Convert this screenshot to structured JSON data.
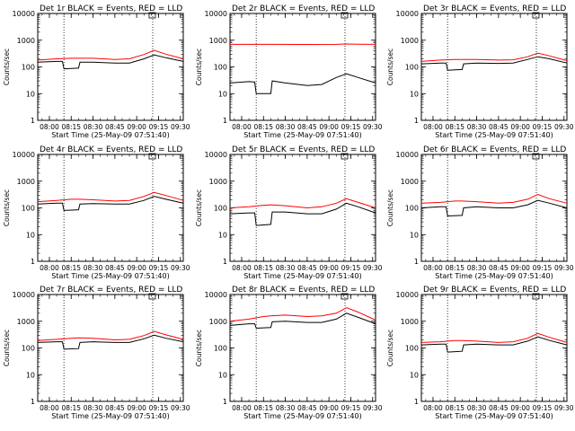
{
  "figure": {
    "ylabel": "Counts/sec",
    "xlabel": "Start Time (25-May-09 07:51:40)",
    "x_ticks": [
      "08:00",
      "08:15",
      "08:30",
      "08:45",
      "09:00",
      "09:15",
      "09:30"
    ],
    "y_ticks": [
      "1",
      "10",
      "100",
      "1000",
      "10000"
    ],
    "colors": {
      "events": "#000000",
      "lld": "#ff0000",
      "axes": "#000000"
    }
  },
  "chart_data": [
    {
      "type": "line",
      "title": "Det 1r BLACK = Events, RED = LLD",
      "xlabel": "Start Time (25-May-09 07:51:40)",
      "ylabel": "Counts/sec",
      "xlim": [
        "07:52",
        "09:32"
      ],
      "ylim": [
        1,
        10000
      ],
      "yscale": "log",
      "x_tick_labels": [
        "08:00",
        "08:15",
        "08:30",
        "08:45",
        "09:00",
        "09:15",
        "09:30"
      ],
      "y_tick_labels": [
        "1",
        "10",
        "100",
        "1000",
        "10000"
      ],
      "vlines": [
        "08:10",
        "09:11"
      ],
      "series": [
        {
          "name": "Events",
          "color": "#000000",
          "x": [
            "07:52",
            "08:05",
            "08:09",
            "08:10",
            "08:20",
            "08:21",
            "08:30",
            "08:45",
            "08:55",
            "09:05",
            "09:12",
            "09:20",
            "09:32"
          ],
          "y": [
            150,
            160,
            160,
            85,
            90,
            150,
            150,
            140,
            140,
            200,
            280,
            220,
            160
          ]
        },
        {
          "name": "LLD",
          "color": "#ff0000",
          "x": [
            "07:52",
            "08:05",
            "08:15",
            "08:20",
            "08:30",
            "08:45",
            "08:55",
            "09:05",
            "09:12",
            "09:20",
            "09:32"
          ],
          "y": [
            180,
            200,
            210,
            210,
            210,
            190,
            200,
            290,
            420,
            300,
            200
          ]
        }
      ]
    },
    {
      "type": "line",
      "title": "Det 2r BLACK = Events, RED = LLD",
      "xlabel": "Start Time (25-May-09 07:51:40)",
      "ylabel": "Counts/sec",
      "xlim": [
        "07:52",
        "09:32"
      ],
      "ylim": [
        1,
        10000
      ],
      "yscale": "log",
      "x_tick_labels": [
        "08:00",
        "08:15",
        "08:30",
        "08:45",
        "09:00",
        "09:15",
        "09:30"
      ],
      "y_tick_labels": [
        "1",
        "10",
        "100",
        "1000",
        "10000"
      ],
      "vlines": [
        "08:10",
        "09:11"
      ],
      "series": [
        {
          "name": "Events",
          "color": "#000000",
          "x": [
            "07:52",
            "08:05",
            "08:09",
            "08:10",
            "08:20",
            "08:21",
            "08:30",
            "08:45",
            "08:55",
            "09:05",
            "09:12",
            "09:20",
            "09:32"
          ],
          "y": [
            25,
            28,
            27,
            10,
            10,
            30,
            25,
            20,
            22,
            40,
            55,
            40,
            25
          ]
        },
        {
          "name": "LLD",
          "color": "#ff0000",
          "x": [
            "07:52",
            "08:20",
            "08:45",
            "09:05",
            "09:12",
            "09:20",
            "09:32"
          ],
          "y": [
            700,
            700,
            690,
            700,
            720,
            710,
            700
          ]
        }
      ]
    },
    {
      "type": "line",
      "title": "Det 3r BLACK = Events, RED = LLD",
      "xlabel": "Start Time (25-May-09 07:51:40)",
      "ylabel": "Counts/sec",
      "xlim": [
        "07:52",
        "09:32"
      ],
      "ylim": [
        1,
        10000
      ],
      "yscale": "log",
      "x_tick_labels": [
        "08:00",
        "08:15",
        "08:30",
        "08:45",
        "09:00",
        "09:15",
        "09:30"
      ],
      "y_tick_labels": [
        "1",
        "10",
        "100",
        "1000",
        "10000"
      ],
      "vlines": [
        "08:10",
        "09:11"
      ],
      "series": [
        {
          "name": "Events",
          "color": "#000000",
          "x": [
            "07:52",
            "08:05",
            "08:09",
            "08:10",
            "08:20",
            "08:21",
            "08:30",
            "08:45",
            "08:55",
            "09:05",
            "09:12",
            "09:20",
            "09:32"
          ],
          "y": [
            130,
            140,
            140,
            75,
            80,
            130,
            140,
            135,
            140,
            190,
            240,
            200,
            140
          ]
        },
        {
          "name": "LLD",
          "color": "#ff0000",
          "x": [
            "07:52",
            "08:05",
            "08:15",
            "08:20",
            "08:30",
            "08:45",
            "08:55",
            "09:05",
            "09:12",
            "09:20",
            "09:32"
          ],
          "y": [
            160,
            180,
            190,
            190,
            190,
            180,
            185,
            240,
            330,
            260,
            170
          ]
        }
      ]
    },
    {
      "type": "line",
      "title": "Det 4r BLACK = Events, RED = LLD",
      "xlabel": "Start Time (25-May-09 07:51:40)",
      "ylabel": "Counts/sec",
      "xlim": [
        "07:52",
        "09:32"
      ],
      "ylim": [
        1,
        10000
      ],
      "yscale": "log",
      "x_tick_labels": [
        "08:00",
        "08:15",
        "08:30",
        "08:45",
        "09:00",
        "09:15",
        "09:30"
      ],
      "y_tick_labels": [
        "1",
        "10",
        "100",
        "1000",
        "10000"
      ],
      "vlines": [
        "08:10",
        "09:11"
      ],
      "series": [
        {
          "name": "Events",
          "color": "#000000",
          "x": [
            "07:52",
            "08:05",
            "08:09",
            "08:10",
            "08:20",
            "08:21",
            "08:30",
            "08:45",
            "08:55",
            "09:05",
            "09:12",
            "09:20",
            "09:32"
          ],
          "y": [
            140,
            150,
            150,
            80,
            85,
            140,
            145,
            140,
            140,
            190,
            270,
            210,
            150
          ]
        },
        {
          "name": "LLD",
          "color": "#ff0000",
          "x": [
            "07:52",
            "08:05",
            "08:15",
            "08:20",
            "08:30",
            "08:45",
            "08:55",
            "09:05",
            "09:12",
            "09:20",
            "09:32"
          ],
          "y": [
            170,
            190,
            210,
            210,
            200,
            180,
            190,
            270,
            380,
            290,
            190
          ]
        }
      ]
    },
    {
      "type": "line",
      "title": "Det 5r BLACK = Events, RED = LLD",
      "xlabel": "Start Time (25-May-09 07:51:40)",
      "ylabel": "Counts/sec",
      "xlim": [
        "07:52",
        "09:32"
      ],
      "ylim": [
        1,
        10000
      ],
      "yscale": "log",
      "x_tick_labels": [
        "08:00",
        "08:15",
        "08:30",
        "08:45",
        "09:00",
        "09:15",
        "09:30"
      ],
      "y_tick_labels": [
        "1",
        "10",
        "100",
        "1000",
        "10000"
      ],
      "vlines": [
        "08:10",
        "09:11"
      ],
      "series": [
        {
          "name": "Events",
          "color": "#000000",
          "x": [
            "07:52",
            "08:05",
            "08:09",
            "08:10",
            "08:20",
            "08:21",
            "08:30",
            "08:45",
            "08:55",
            "09:05",
            "09:12",
            "09:20",
            "09:32"
          ],
          "y": [
            60,
            65,
            65,
            22,
            24,
            70,
            70,
            60,
            60,
            90,
            150,
            110,
            65
          ]
        },
        {
          "name": "LLD",
          "color": "#ff0000",
          "x": [
            "07:52",
            "08:05",
            "08:15",
            "08:20",
            "08:30",
            "08:45",
            "08:55",
            "09:05",
            "09:12",
            "09:20",
            "09:32"
          ],
          "y": [
            100,
            110,
            125,
            130,
            120,
            100,
            110,
            150,
            220,
            160,
            100
          ]
        }
      ]
    },
    {
      "type": "line",
      "title": "Det 6r BLACK = Events, RED = LLD",
      "xlabel": "Start Time (25-May-09 07:51:40)",
      "ylabel": "Counts/sec",
      "xlim": [
        "07:52",
        "09:32"
      ],
      "ylim": [
        1,
        10000
      ],
      "yscale": "log",
      "x_tick_labels": [
        "08:00",
        "08:15",
        "08:30",
        "08:45",
        "09:00",
        "09:15",
        "09:30"
      ],
      "y_tick_labels": [
        "1",
        "10",
        "100",
        "1000",
        "10000"
      ],
      "vlines": [
        "08:10",
        "09:11"
      ],
      "series": [
        {
          "name": "Events",
          "color": "#000000",
          "x": [
            "07:52",
            "08:05",
            "08:09",
            "08:10",
            "08:20",
            "08:21",
            "08:30",
            "08:45",
            "08:55",
            "09:05",
            "09:12",
            "09:20",
            "09:32"
          ],
          "y": [
            100,
            110,
            110,
            50,
            52,
            100,
            110,
            100,
            100,
            130,
            190,
            150,
            100
          ]
        },
        {
          "name": "LLD",
          "color": "#ff0000",
          "x": [
            "07:52",
            "08:05",
            "08:15",
            "08:20",
            "08:30",
            "08:45",
            "08:55",
            "09:05",
            "09:12",
            "09:20",
            "09:32"
          ],
          "y": [
            150,
            160,
            180,
            180,
            170,
            150,
            160,
            210,
            320,
            220,
            150
          ]
        }
      ]
    },
    {
      "type": "line",
      "title": "Det 7r BLACK = Events, RED = LLD",
      "xlabel": "Start Time (25-May-09 07:51:40)",
      "ylabel": "Counts/sec",
      "xlim": [
        "07:52",
        "09:32"
      ],
      "ylim": [
        1,
        10000
      ],
      "yscale": "log",
      "x_tick_labels": [
        "08:00",
        "08:15",
        "08:30",
        "08:45",
        "09:00",
        "09:15",
        "09:30"
      ],
      "y_tick_labels": [
        "1",
        "10",
        "100",
        "1000",
        "10000"
      ],
      "vlines": [
        "08:10",
        "09:11"
      ],
      "series": [
        {
          "name": "Events",
          "color": "#000000",
          "x": [
            "07:52",
            "08:05",
            "08:09",
            "08:10",
            "08:20",
            "08:21",
            "08:30",
            "08:45",
            "08:55",
            "09:05",
            "09:12",
            "09:20",
            "09:32"
          ],
          "y": [
            160,
            170,
            170,
            90,
            95,
            160,
            170,
            160,
            160,
            220,
            300,
            230,
            170
          ]
        },
        {
          "name": "LLD",
          "color": "#ff0000",
          "x": [
            "07:52",
            "08:05",
            "08:15",
            "08:20",
            "08:30",
            "08:45",
            "08:55",
            "09:05",
            "09:12",
            "09:20",
            "09:32"
          ],
          "y": [
            190,
            210,
            230,
            240,
            230,
            200,
            210,
            290,
            420,
            310,
            210
          ]
        }
      ]
    },
    {
      "type": "line",
      "title": "Det 8r BLACK = Events, RED = LLD",
      "xlabel": "Start Time (25-May-09 07:51:40)",
      "ylabel": "Counts/sec",
      "xlim": [
        "07:52",
        "09:32"
      ],
      "ylim": [
        1,
        10000
      ],
      "yscale": "log",
      "x_tick_labels": [
        "08:00",
        "08:15",
        "08:30",
        "08:45",
        "09:00",
        "09:15",
        "09:30"
      ],
      "y_tick_labels": [
        "1",
        "10",
        "100",
        "1000",
        "10000"
      ],
      "vlines": [
        "08:10",
        "09:11"
      ],
      "series": [
        {
          "name": "Events",
          "color": "#000000",
          "x": [
            "07:52",
            "08:05",
            "08:09",
            "08:10",
            "08:20",
            "08:21",
            "08:30",
            "08:45",
            "08:55",
            "09:05",
            "09:12",
            "09:20",
            "09:32"
          ],
          "y": [
            700,
            800,
            800,
            550,
            580,
            950,
            1000,
            900,
            900,
            1200,
            2000,
            1400,
            800
          ]
        },
        {
          "name": "LLD",
          "color": "#ff0000",
          "x": [
            "07:52",
            "08:05",
            "08:15",
            "08:20",
            "08:30",
            "08:45",
            "08:55",
            "09:05",
            "09:12",
            "09:20",
            "09:32"
          ],
          "y": [
            1000,
            1200,
            1500,
            1600,
            1700,
            1500,
            1600,
            2000,
            3200,
            2200,
            1100
          ]
        }
      ]
    },
    {
      "type": "line",
      "title": "Det 9r BLACK = Events, RED = LLD",
      "xlabel": "Start Time (25-May-09 07:51:40)",
      "ylabel": "Counts/sec",
      "xlim": [
        "07:52",
        "09:32"
      ],
      "ylim": [
        1,
        10000
      ],
      "yscale": "log",
      "x_tick_labels": [
        "08:00",
        "08:15",
        "08:30",
        "08:45",
        "09:00",
        "09:15",
        "09:30"
      ],
      "y_tick_labels": [
        "1",
        "10",
        "100",
        "1000",
        "10000"
      ],
      "vlines": [
        "08:10",
        "09:11"
      ],
      "series": [
        {
          "name": "Events",
          "color": "#000000",
          "x": [
            "07:52",
            "08:05",
            "08:09",
            "08:10",
            "08:20",
            "08:21",
            "08:30",
            "08:45",
            "08:55",
            "09:05",
            "09:12",
            "09:20",
            "09:32"
          ],
          "y": [
            130,
            140,
            140,
            70,
            75,
            130,
            140,
            130,
            130,
            180,
            260,
            190,
            130
          ]
        },
        {
          "name": "LLD",
          "color": "#ff0000",
          "x": [
            "07:52",
            "08:05",
            "08:15",
            "08:20",
            "08:30",
            "08:45",
            "08:55",
            "09:05",
            "09:12",
            "09:20",
            "09:32"
          ],
          "y": [
            160,
            170,
            190,
            190,
            180,
            160,
            170,
            230,
            350,
            250,
            160
          ]
        }
      ]
    }
  ]
}
